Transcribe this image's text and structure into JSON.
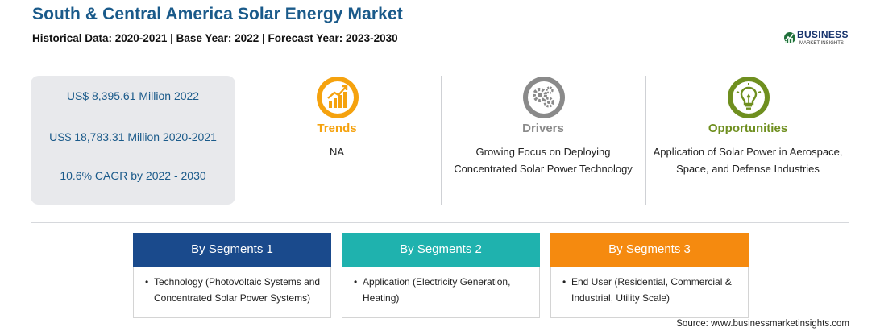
{
  "header": {
    "title": "South & Central America Solar Energy Market",
    "subtitle": "Historical Data: 2020-2021 | Base Year: 2022 | Forecast Year: 2023-2030"
  },
  "logo": {
    "name": "BUSINESS",
    "tagline": "MARKET INSIGHTS",
    "icon": "globe-icon"
  },
  "stats": [
    "US$ 8,395.61 Million 2022",
    "US$ 18,783.31 Million 2020-2021",
    "10.6% CAGR by 2022 - 2030"
  ],
  "columns": [
    {
      "title": "Trends",
      "text": "NA",
      "icon": "trend-chart-icon",
      "color": "#f5a20e"
    },
    {
      "title": "Drivers",
      "text": "Growing Focus on Deploying Concentrated Solar Power Technology",
      "icon": "gears-icon",
      "color": "#8a8a8a"
    },
    {
      "title": "Opportunities",
      "text": "Application of Solar Power in Aerospace, Space, and Defense Industries",
      "icon": "lightbulb-icon",
      "color": "#6f8f1f"
    }
  ],
  "segments": [
    {
      "heading": "By Segments 1",
      "color": "#1a4a8c",
      "item": "Technology (Photovoltaic Systems and Concentrated Solar Power Systems)"
    },
    {
      "heading": "By Segments 2",
      "color": "#1fb2ae",
      "item": "Application (Electricity Generation, Heating)"
    },
    {
      "heading": "By Segments 3",
      "color": "#f58a0f",
      "item": "End User (Residential, Commercial & Industrial, Utility Scale)"
    }
  ],
  "source": "Source: www.businessmarketinsights.com"
}
